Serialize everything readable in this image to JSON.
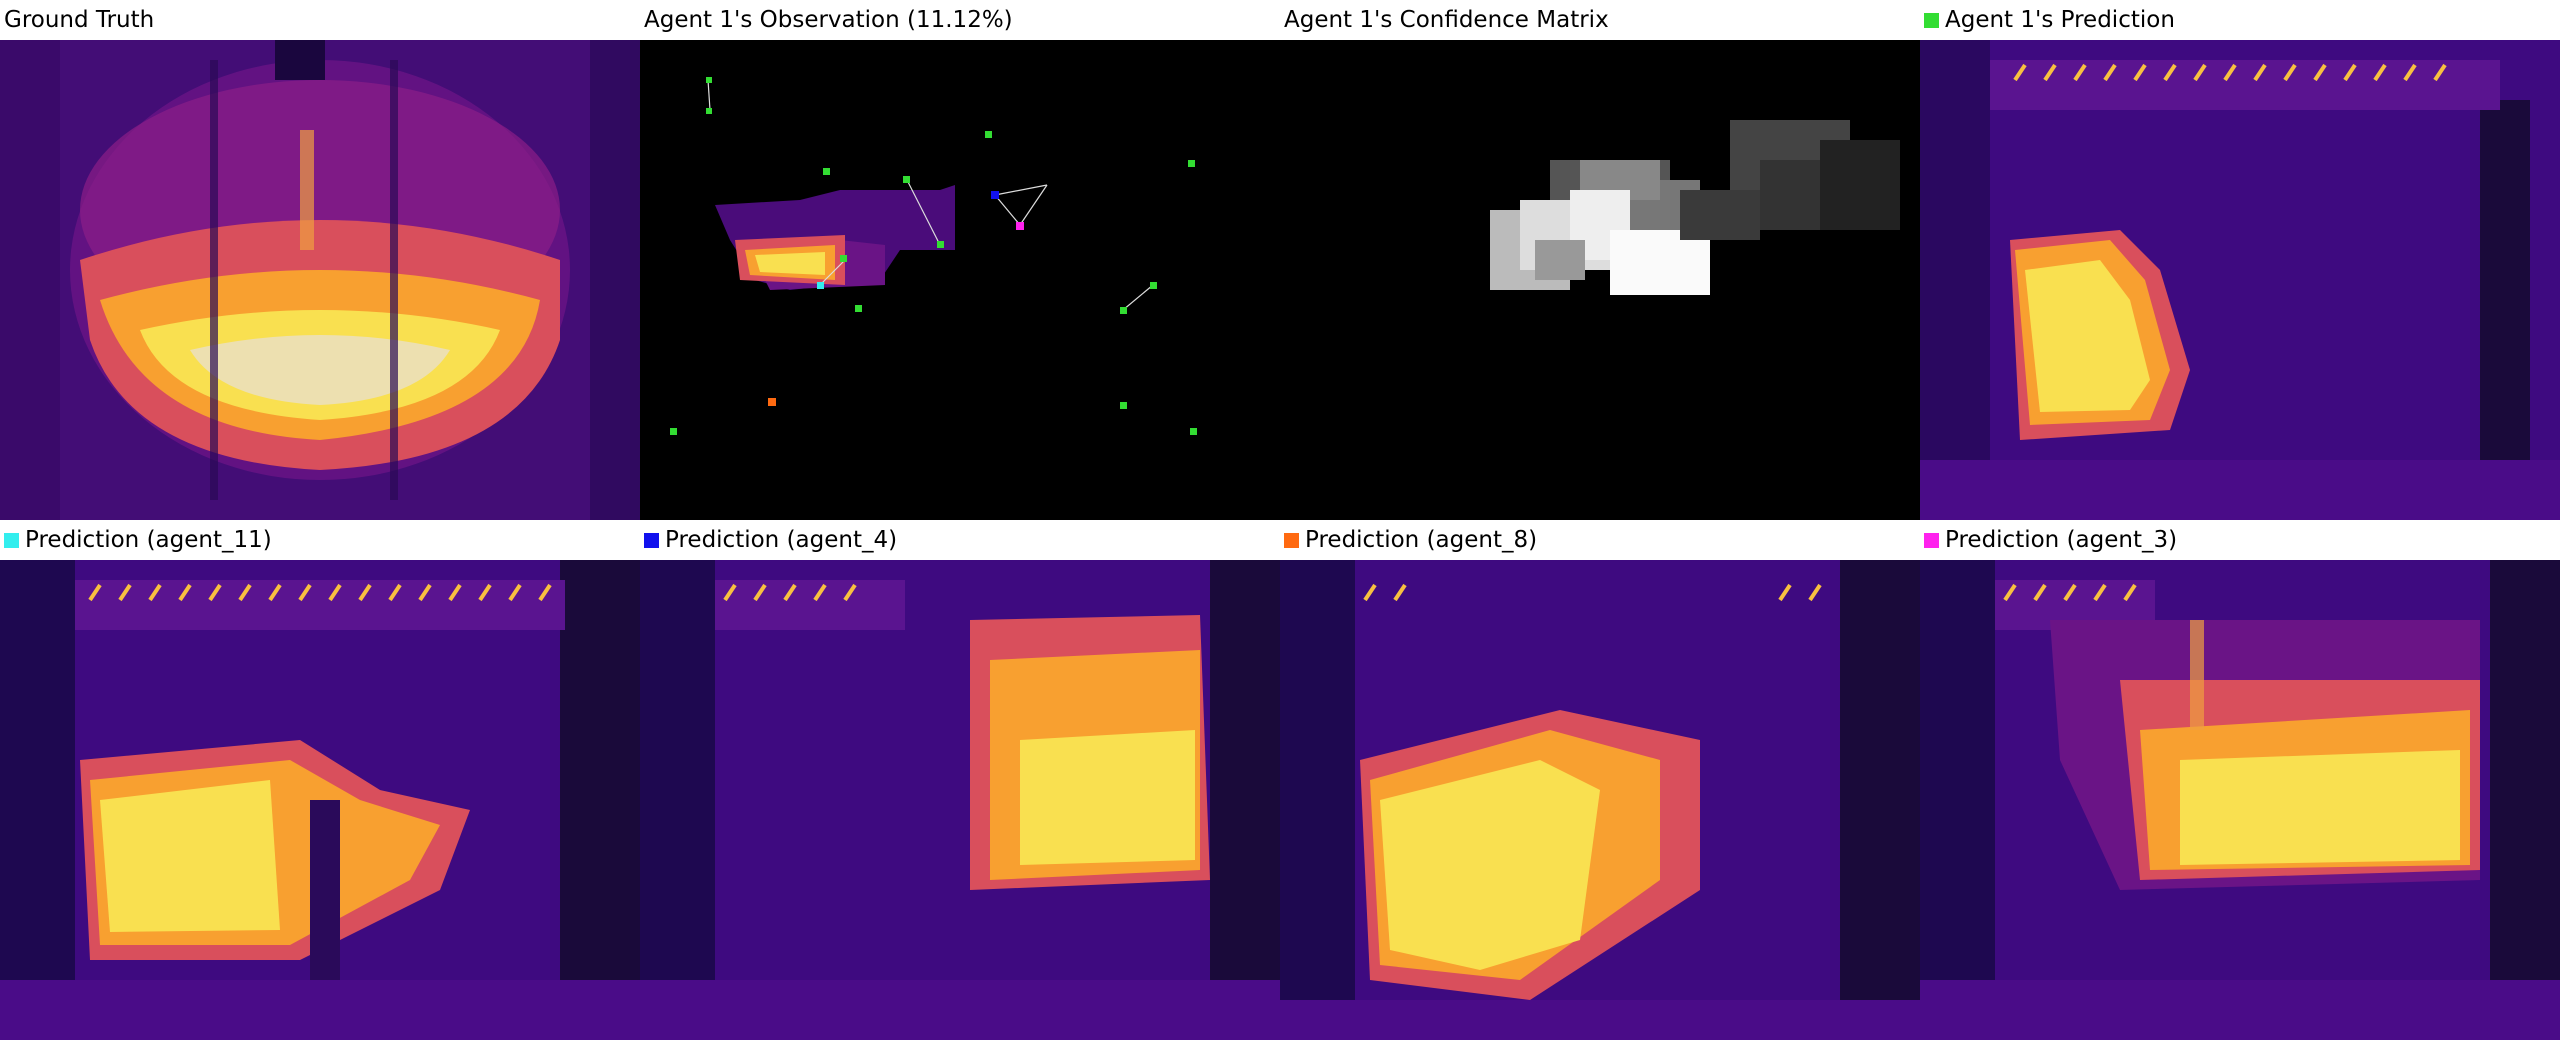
{
  "panels": [
    {
      "title": "Ground Truth",
      "swatch": null,
      "type": "heat"
    },
    {
      "title": "Agent 1's Observation (11.12%)",
      "swatch": null,
      "type": "observation"
    },
    {
      "title": "Agent 1's Confidence Matrix",
      "swatch": null,
      "type": "confidence"
    },
    {
      "title": "Agent 1's Prediction",
      "swatch": "#33dd33",
      "type": "prediction"
    },
    {
      "title": "Prediction (agent_11)",
      "swatch": "#33eeee",
      "type": "prediction"
    },
    {
      "title": "Prediction (agent_4)",
      "swatch": "#1111ee",
      "type": "prediction"
    },
    {
      "title": "Prediction (agent_8)",
      "swatch": "#ff6a11",
      "type": "prediction"
    },
    {
      "title": "Prediction (agent_3)",
      "swatch": "#ff22ee",
      "type": "prediction"
    }
  ],
  "agent_colors": {
    "agent_1": "#33dd33",
    "agent_11": "#33eeee",
    "agent_4": "#1111ee",
    "agent_8": "#ff6a11",
    "agent_3": "#ff22ee"
  },
  "colormap": [
    "#0d0887",
    "#5c01a6",
    "#9c179e",
    "#cc4778",
    "#ed7953",
    "#fdb42f",
    "#f0f921"
  ]
}
